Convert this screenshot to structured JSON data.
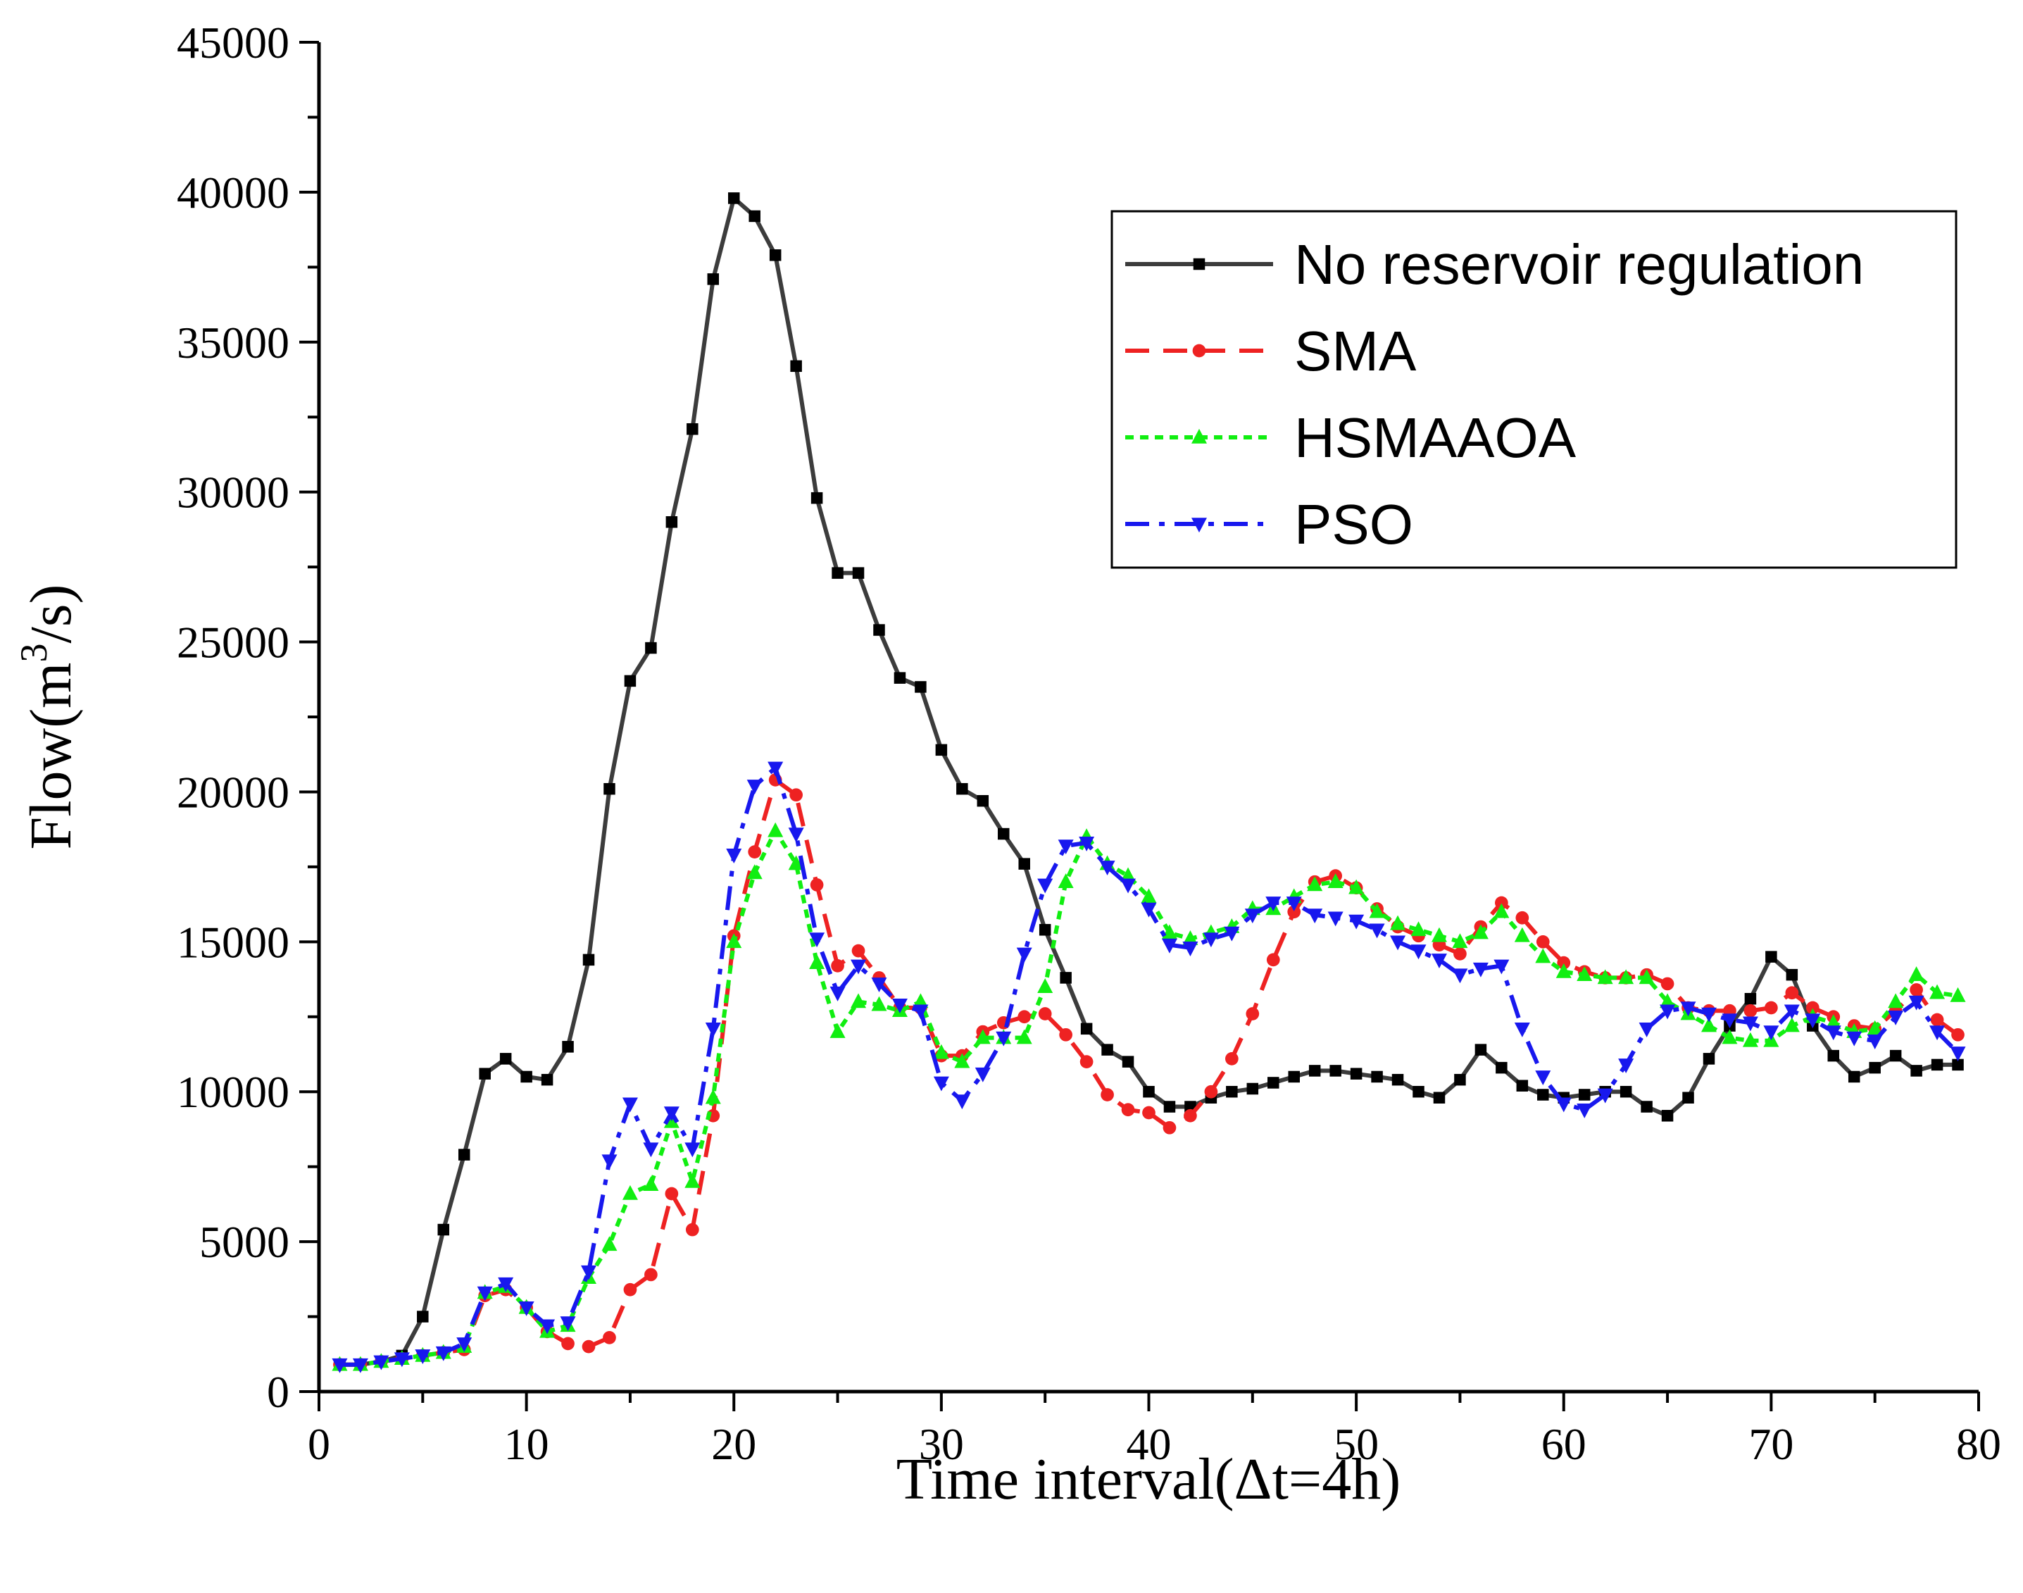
{
  "chart_data": {
    "type": "line",
    "title": "",
    "xlabel": "Time interval(Δt=4h)",
    "ylabel_prefix": "Flow(m",
    "ylabel_sup": "3",
    "ylabel_suffix": "/s)",
    "xlim": [
      0,
      80
    ],
    "ylim": [
      0,
      45000
    ],
    "xticks": [
      0,
      10,
      20,
      30,
      40,
      50,
      60,
      70,
      80
    ],
    "yticks": [
      0,
      5000,
      10000,
      15000,
      20000,
      25000,
      30000,
      35000,
      40000,
      45000
    ],
    "legend_position": "top-right",
    "x": [
      1,
      2,
      3,
      4,
      5,
      6,
      7,
      8,
      9,
      10,
      11,
      12,
      13,
      14,
      15,
      16,
      17,
      18,
      19,
      20,
      21,
      22,
      23,
      24,
      25,
      26,
      27,
      28,
      29,
      30,
      31,
      32,
      33,
      34,
      35,
      36,
      37,
      38,
      39,
      40,
      41,
      42,
      43,
      44,
      45,
      46,
      47,
      48,
      49,
      50,
      51,
      52,
      53,
      54,
      55,
      56,
      57,
      58,
      59,
      60,
      61,
      62,
      63,
      64,
      65,
      66,
      67,
      68,
      69,
      70,
      71,
      72,
      73,
      74,
      75,
      76,
      77,
      78,
      79
    ],
    "series": [
      {
        "name": "No reservoir regulation",
        "color": "#3c3c3c",
        "dash": "solid",
        "marker": "square",
        "values": [
          900,
          900,
          1000,
          1200,
          2500,
          5400,
          7900,
          10600,
          11100,
          10500,
          10400,
          11500,
          14400,
          20100,
          23700,
          24800,
          29000,
          32100,
          37100,
          39800,
          39200,
          37900,
          34200,
          29800,
          27300,
          27300,
          25400,
          23800,
          23500,
          21400,
          20100,
          19700,
          18600,
          17600,
          15400,
          13800,
          12100,
          11400,
          11000,
          10000,
          9500,
          9500,
          9800,
          10000,
          10100,
          10300,
          10500,
          10700,
          10700,
          10600,
          10500,
          10400,
          10000,
          9800,
          10400,
          11400,
          10800,
          10200,
          9900,
          9800,
          9900,
          10000,
          10000,
          9500,
          9200,
          9800,
          11100,
          12200,
          13100,
          14500,
          13900,
          12200,
          11200,
          10500,
          10800,
          11200,
          10700,
          10900,
          10900
        ],
        "marker_mask": [
          1,
          1,
          1,
          1,
          1,
          1,
          1,
          1,
          1,
          1,
          1,
          1,
          1,
          1,
          1,
          1,
          1,
          1,
          1,
          1,
          1,
          1,
          1,
          1,
          1,
          1,
          1,
          1,
          1,
          1,
          1,
          1,
          1,
          1,
          1,
          1,
          1,
          1,
          1,
          1,
          1,
          1,
          1,
          1,
          1,
          1,
          1,
          1,
          1,
          1,
          1,
          1,
          1,
          1,
          1,
          1,
          1,
          1,
          1,
          1,
          1,
          1,
          1,
          1,
          1,
          1,
          1,
          1,
          1,
          1,
          1,
          1,
          1,
          1,
          1,
          1,
          1,
          1,
          1
        ]
      },
      {
        "name": "SMA",
        "color": "#ee2222",
        "dash": "dashed",
        "marker": "circle",
        "values": [
          900,
          900,
          1000,
          1100,
          1200,
          1300,
          1400,
          3200,
          3400,
          2800,
          2000,
          1600,
          1500,
          1800,
          3400,
          3900,
          6600,
          5400,
          9200,
          15200,
          18000,
          20400,
          19900,
          16900,
          14200,
          14700,
          13800,
          12800,
          12800,
          11200,
          11200,
          12000,
          12300,
          12500,
          12600,
          11900,
          11000,
          9900,
          9400,
          9300,
          8800,
          9200,
          10000,
          11100,
          12600,
          14400,
          16000,
          17000,
          17200,
          16800,
          16100,
          15500,
          15200,
          14900,
          14600,
          15500,
          16300,
          15800,
          15000,
          14300,
          14000,
          13800,
          13800,
          13900,
          13600,
          12800,
          12700,
          12700,
          12700,
          12800,
          13300,
          12800,
          12500,
          12200,
          12100,
          12700,
          13400,
          12400,
          11900
        ],
        "marker_mask": [
          1,
          1,
          1,
          1,
          1,
          1,
          1,
          1,
          1,
          1,
          1,
          1,
          1,
          1,
          1,
          1,
          1,
          1,
          1,
          1,
          1,
          1,
          1,
          1,
          1,
          1,
          1,
          1,
          1,
          1,
          1,
          1,
          1,
          1,
          1,
          1,
          1,
          1,
          1,
          1,
          1,
          1,
          1,
          1,
          1,
          1,
          1,
          1,
          1,
          1,
          1,
          1,
          1,
          1,
          1,
          1,
          1,
          1,
          1,
          1,
          1,
          1,
          1,
          1,
          1,
          1,
          1,
          1,
          1,
          1,
          1,
          1,
          1,
          1,
          1,
          1,
          1,
          1,
          1
        ]
      },
      {
        "name": "HSMAAOA",
        "color": "#11ee11",
        "dash": "dotted",
        "marker": "triangle-up",
        "values": [
          900,
          900,
          1000,
          1100,
          1200,
          1300,
          1500,
          3300,
          3500,
          2800,
          2000,
          2200,
          3800,
          4900,
          6600,
          6900,
          9000,
          7000,
          9800,
          15000,
          17300,
          18700,
          17600,
          14300,
          12000,
          13000,
          12900,
          12700,
          13000,
          11300,
          11000,
          11800,
          11800,
          11800,
          13500,
          17000,
          18500,
          17600,
          17200,
          16500,
          15300,
          15100,
          15300,
          15500,
          16100,
          16100,
          16500,
          16900,
          17000,
          16800,
          16000,
          15600,
          15400,
          15200,
          15000,
          15300,
          16000,
          15200,
          14500,
          14000,
          13900,
          13800,
          13800,
          13800,
          13000,
          12600,
          12200,
          11800,
          11700,
          11700,
          12200,
          12500,
          12300,
          12000,
          12100,
          13000,
          13900,
          13300,
          13200
        ],
        "marker_mask": [
          1,
          1,
          1,
          1,
          1,
          1,
          1,
          1,
          1,
          1,
          1,
          1,
          1,
          1,
          1,
          1,
          1,
          1,
          1,
          1,
          1,
          1,
          1,
          1,
          1,
          1,
          1,
          1,
          1,
          1,
          1,
          1,
          1,
          1,
          1,
          1,
          1,
          1,
          1,
          1,
          1,
          1,
          1,
          1,
          1,
          1,
          1,
          1,
          1,
          1,
          1,
          1,
          1,
          1,
          1,
          1,
          1,
          1,
          1,
          1,
          1,
          1,
          1,
          1,
          1,
          1,
          1,
          1,
          1,
          1,
          1,
          1,
          1,
          1,
          1,
          1,
          1,
          1,
          1
        ]
      },
      {
        "name": "PSO",
        "color": "#1818ee",
        "dash": "dashdot",
        "marker": "triangle-down",
        "values": [
          900,
          900,
          1000,
          1100,
          1200,
          1300,
          1600,
          3300,
          3600,
          2800,
          2200,
          2300,
          4000,
          7700,
          9600,
          8100,
          9300,
          8100,
          12100,
          17900,
          20200,
          20800,
          18600,
          15100,
          13300,
          14200,
          13600,
          12900,
          12700,
          10300,
          9700,
          10600,
          11800,
          14600,
          16900,
          18200,
          18300,
          17500,
          16900,
          16100,
          14900,
          14800,
          15100,
          15300,
          15900,
          16300,
          16300,
          15900,
          15800,
          15700,
          15400,
          15000,
          14700,
          14400,
          13900,
          14100,
          14200,
          12100,
          10500,
          9600,
          9400,
          9900,
          10900,
          12100,
          12700,
          12800,
          12600,
          12400,
          12300,
          12000,
          12700,
          12400,
          12000,
          11800,
          11700,
          12500,
          13000,
          12000,
          11300
        ],
        "marker_mask": [
          1,
          1,
          1,
          1,
          1,
          1,
          1,
          1,
          1,
          1,
          1,
          1,
          1,
          1,
          1,
          1,
          1,
          1,
          1,
          1,
          1,
          1,
          1,
          1,
          1,
          1,
          1,
          1,
          1,
          1,
          1,
          1,
          1,
          1,
          1,
          1,
          1,
          1,
          1,
          1,
          1,
          1,
          1,
          1,
          1,
          1,
          1,
          1,
          1,
          1,
          1,
          1,
          1,
          1,
          1,
          1,
          1,
          1,
          1,
          1,
          1,
          1,
          1,
          1,
          1,
          1,
          1,
          1,
          1,
          1,
          1,
          1,
          1,
          1,
          1,
          1,
          1,
          1,
          1
        ]
      }
    ]
  }
}
